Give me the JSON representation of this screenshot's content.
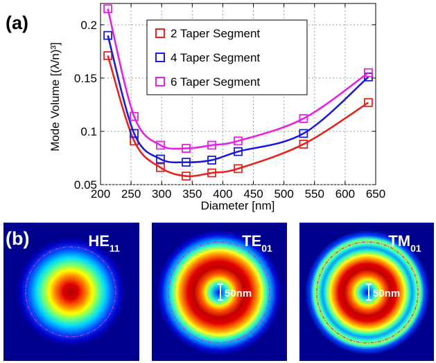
{
  "panel_a_label": "(a)",
  "panel_b_label": "(b)",
  "colors": {
    "series": [
      "#e8201e",
      "#1a1ad8",
      "#e61ee6"
    ],
    "grid": "#9a9a9a",
    "field_background": "#00008f",
    "boundary": "#cc2ccc"
  },
  "chart_data": {
    "type": "line",
    "xlabel": "Diameter [nm]",
    "ylabel": "Mode Volume [(λ/n)³]",
    "xlim": [
      200,
      650
    ],
    "ylim": [
      0.05,
      0.22
    ],
    "xticks": [
      200,
      250,
      300,
      350,
      400,
      450,
      500,
      550,
      600,
      650
    ],
    "yticks": [
      0.05,
      0.1,
      0.15,
      0.2
    ],
    "ytick_labels": [
      "0.05",
      "0.1",
      "0.15",
      "0.2"
    ],
    "grid": true,
    "legend_position": "top-right",
    "series": [
      {
        "name": "2 Taper Segment",
        "marker": "square",
        "x": [
          212,
          255,
          298,
          340,
          382,
          425,
          532,
          638
        ],
        "y": [
          0.171,
          0.091,
          0.066,
          0.058,
          0.061,
          0.065,
          0.088,
          0.127
        ]
      },
      {
        "name": "4 Taper Segment",
        "marker": "square",
        "x": [
          212,
          255,
          298,
          340,
          382,
          425,
          532,
          638
        ],
        "y": [
          0.19,
          0.098,
          0.074,
          0.071,
          0.073,
          0.081,
          0.098,
          0.151
        ]
      },
      {
        "name": "6 Taper Segment",
        "marker": "square",
        "x": [
          212,
          255,
          298,
          340,
          382,
          425,
          532,
          638
        ],
        "y": [
          0.215,
          0.114,
          0.087,
          0.084,
          0.087,
          0.091,
          0.112,
          0.155
        ]
      }
    ]
  },
  "field_maps": [
    {
      "mode": "HE",
      "subscript": "11",
      "scale_label": ""
    },
    {
      "mode": "TE",
      "subscript": "01",
      "scale_label": "50nm"
    },
    {
      "mode": "TM",
      "subscript": "01",
      "scale_label": "50nm"
    }
  ]
}
